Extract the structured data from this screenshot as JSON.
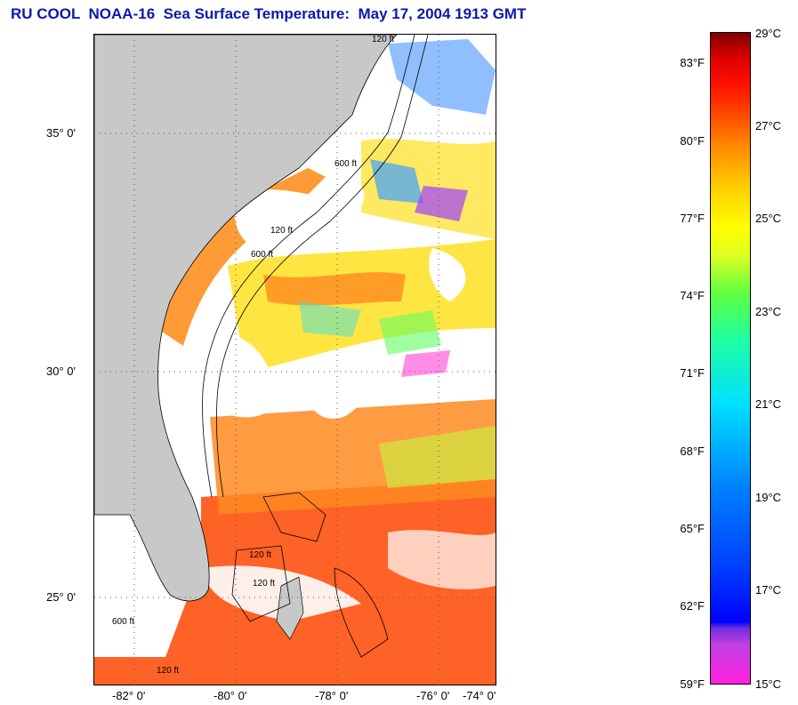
{
  "title": "RU COOL  NOAA-16  Sea Surface Temperature:  May 17, 2004 1913 GMT",
  "map": {
    "lat_labels": [
      "35° 0'",
      "30° 0'",
      "25° 0'"
    ],
    "lon_labels": [
      "-82° 0'",
      "-80° 0'",
      "-78° 0'",
      "-76° 0'",
      "-74° 0'"
    ],
    "isobath_labels": [
      "120 ft",
      "600 ft",
      "120 ft",
      "600 ft",
      "120 ft",
      "600 ft",
      "120 ft",
      "120 ft"
    ],
    "colors": {
      "land": "#c8c8c8",
      "cloud": "#ffffff",
      "frame": "#000000"
    }
  },
  "colorbar": {
    "fahrenheit": [
      "83°F",
      "80°F",
      "77°F",
      "74°F",
      "71°F",
      "68°F",
      "65°F",
      "62°F",
      "59°F"
    ],
    "celsius": [
      "29°C",
      "27°C",
      "25°C",
      "23°C",
      "21°C",
      "19°C",
      "17°C",
      "15°C"
    ]
  }
}
